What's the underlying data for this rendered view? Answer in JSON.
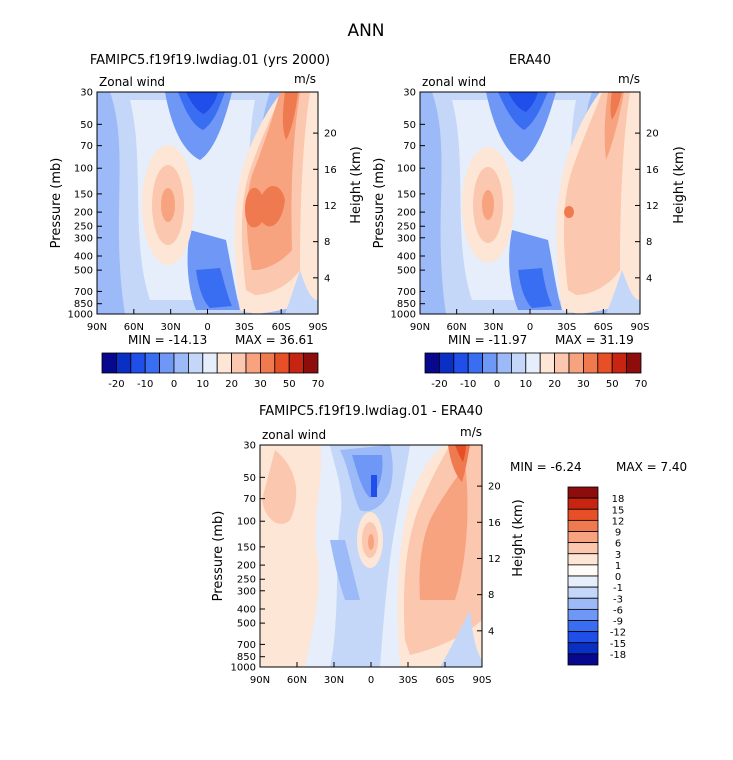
{
  "title": "ANN",
  "colors": {
    "diverging": [
      "#08088f",
      "#0a2fc4",
      "#1f4ee8",
      "#3a6ef2",
      "#6f97f5",
      "#9cbaf7",
      "#c4d7f8",
      "#e5eefa",
      "#fde6d6",
      "#fbc7ae",
      "#f7a37f",
      "#f07a50",
      "#e74f26",
      "#c72512",
      "#8d0c0c"
    ]
  },
  "chart_data": [
    {
      "type": "heatmap",
      "title": "FAMIPC5.f19f19.lwdiag.01 (yrs 2000)",
      "label_left": "Zonal wind",
      "units": "m/s",
      "ylabel": "Pressure (mb)",
      "ylabel_right": "Height (km)",
      "x_ticks": [
        "90N",
        "60N",
        "30N",
        "0",
        "30S",
        "60S",
        "90S"
      ],
      "y_ticks": [
        "30",
        "50",
        "70",
        "100",
        "150",
        "200",
        "250",
        "300",
        "400",
        "500",
        "700",
        "850",
        "1000"
      ],
      "height_ticks": [
        "20",
        "16",
        "12",
        "8",
        "4"
      ],
      "min_label": "MIN = -14.13",
      "max_label": "MAX =  36.61",
      "colorbar_labels": [
        "-20",
        "-10",
        "0",
        "10",
        "20",
        "30",
        "50",
        "70"
      ],
      "features": [
        {
          "lat": 30,
          "p": 200,
          "value": 22
        },
        {
          "lat": -42,
          "p": 200,
          "value": 32
        },
        {
          "lat": -58,
          "p": 50,
          "value": 26
        },
        {
          "lat": 0,
          "p": 50,
          "value": -14
        },
        {
          "lat": -10,
          "p": 700,
          "value": -8
        }
      ]
    },
    {
      "type": "heatmap",
      "title": "ERA40",
      "label_left": "zonal wind",
      "units": "m/s",
      "ylabel": "Pressure (mb)",
      "ylabel_right": "Height (km)",
      "x_ticks": [
        "90N",
        "60N",
        "30N",
        "0",
        "30S",
        "60S",
        "90S"
      ],
      "y_ticks": [
        "30",
        "50",
        "70",
        "100",
        "150",
        "200",
        "250",
        "300",
        "400",
        "500",
        "700",
        "850",
        "1000"
      ],
      "height_ticks": [
        "20",
        "16",
        "12",
        "8",
        "4"
      ],
      "min_label": "MIN = -11.97",
      "max_label": "MAX =  31.19",
      "colorbar_labels": [
        "-20",
        "-10",
        "0",
        "10",
        "20",
        "30",
        "50",
        "70"
      ],
      "features": [
        {
          "lat": 30,
          "p": 200,
          "value": 22
        },
        {
          "lat": -40,
          "p": 200,
          "value": 28
        },
        {
          "lat": -60,
          "p": 40,
          "value": 30
        },
        {
          "lat": 0,
          "p": 50,
          "value": -12
        },
        {
          "lat": -10,
          "p": 700,
          "value": -7
        }
      ]
    },
    {
      "type": "heatmap",
      "title": "FAMIPC5.f19f19.lwdiag.01 - ERA40",
      "label_left": "zonal wind",
      "units": "m/s",
      "ylabel": "Pressure (mb)",
      "ylabel_right": "Height (km)",
      "x_ticks": [
        "90N",
        "60N",
        "30N",
        "0",
        "30S",
        "60S",
        "90S"
      ],
      "y_ticks": [
        "30",
        "50",
        "70",
        "100",
        "150",
        "200",
        "250",
        "300",
        "400",
        "500",
        "700",
        "850",
        "1000"
      ],
      "height_ticks": [
        "20",
        "16",
        "12",
        "8",
        "4"
      ],
      "min_label": "MIN =   -6.24",
      "max_label": "MAX =    7.40",
      "colorbar_labels": [
        "18",
        "15",
        "12",
        "9",
        "6",
        "3",
        "1",
        "0",
        "-1",
        "-3",
        "-6",
        "-9",
        "-12",
        "-15",
        "-18"
      ],
      "features": [
        {
          "lat": -60,
          "p": 40,
          "value": 7.4
        },
        {
          "lat": -45,
          "p": 150,
          "value": 5
        },
        {
          "lat": 0,
          "p": 150,
          "value": 4
        },
        {
          "lat": 0,
          "p": 60,
          "value": -6.2
        },
        {
          "lat": 20,
          "p": 500,
          "value": -1.5
        }
      ]
    }
  ]
}
